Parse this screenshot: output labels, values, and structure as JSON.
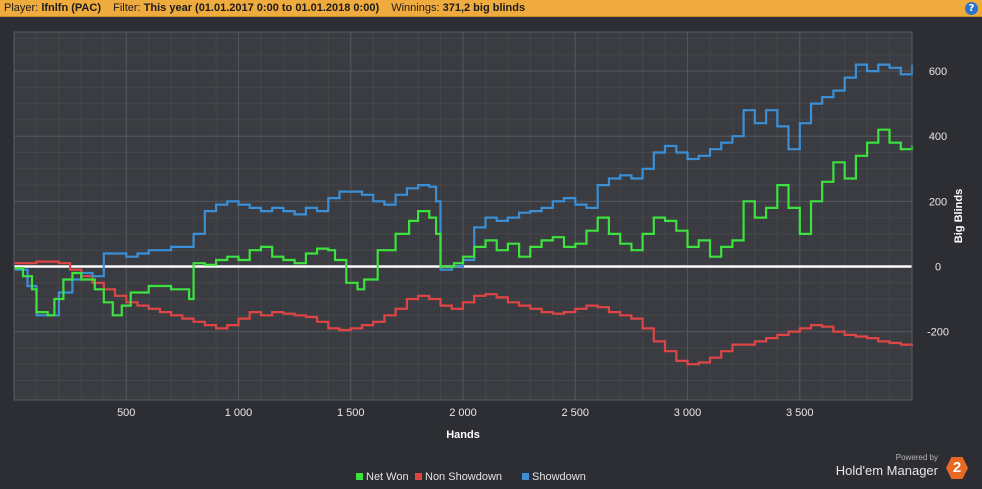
{
  "header": {
    "player_label": "Player:",
    "player_value": "lfnlfn (PAC)",
    "filter_label": "Filter:",
    "filter_value": "This year (01.01.2017 0:00 to 01.01.2018 0:00)",
    "winnings_label": "Winnings:",
    "winnings_value": "371,2 big blinds",
    "help_symbol": "?"
  },
  "branding": {
    "powered_by": "Powered by",
    "product": "Hold'em Manager",
    "logo_number": "2"
  },
  "chart_data": {
    "type": "line",
    "xlabel": "Hands",
    "ylabel": "Big Blinds",
    "xlim": [
      0,
      4000
    ],
    "ylim": [
      -410,
      720
    ],
    "x_ticks": [
      500,
      1000,
      1500,
      2000,
      2500,
      3000,
      3500
    ],
    "x_tick_labels": [
      "500",
      "1 000",
      "1 500",
      "2 000",
      "2 500",
      "3 000",
      "3 500"
    ],
    "y_ticks": [
      -200,
      0,
      200,
      400,
      600
    ],
    "y_tick_labels": [
      "-200",
      "0",
      "200",
      "400",
      "600"
    ],
    "grid": true,
    "legend_position": "bottom-center",
    "zero_line": true,
    "series": [
      {
        "name": "Net Won",
        "color": "#3ee23e",
        "points": [
          [
            0,
            -5
          ],
          [
            40,
            -30
          ],
          [
            80,
            -70
          ],
          [
            100,
            -140
          ],
          [
            150,
            -150
          ],
          [
            180,
            -100
          ],
          [
            220,
            -40
          ],
          [
            260,
            -20
          ],
          [
            300,
            -40
          ],
          [
            360,
            -70
          ],
          [
            400,
            -110
          ],
          [
            440,
            -150
          ],
          [
            480,
            -120
          ],
          [
            520,
            -80
          ],
          [
            600,
            -60
          ],
          [
            700,
            -70
          ],
          [
            780,
            -100
          ],
          [
            800,
            10
          ],
          [
            850,
            5
          ],
          [
            900,
            20
          ],
          [
            950,
            30
          ],
          [
            1000,
            20
          ],
          [
            1050,
            50
          ],
          [
            1100,
            60
          ],
          [
            1150,
            30
          ],
          [
            1200,
            20
          ],
          [
            1250,
            10
          ],
          [
            1300,
            40
          ],
          [
            1350,
            55
          ],
          [
            1400,
            50
          ],
          [
            1430,
            20
          ],
          [
            1480,
            -50
          ],
          [
            1530,
            -70
          ],
          [
            1560,
            -40
          ],
          [
            1620,
            50
          ],
          [
            1700,
            100
          ],
          [
            1760,
            140
          ],
          [
            1800,
            170
          ],
          [
            1850,
            150
          ],
          [
            1880,
            100
          ],
          [
            1900,
            0
          ],
          [
            1960,
            10
          ],
          [
            2000,
            30
          ],
          [
            2050,
            60
          ],
          [
            2100,
            80
          ],
          [
            2150,
            50
          ],
          [
            2200,
            70
          ],
          [
            2250,
            30
          ],
          [
            2300,
            60
          ],
          [
            2350,
            80
          ],
          [
            2400,
            90
          ],
          [
            2450,
            60
          ],
          [
            2500,
            70
          ],
          [
            2550,
            110
          ],
          [
            2600,
            150
          ],
          [
            2650,
            100
          ],
          [
            2700,
            70
          ],
          [
            2750,
            50
          ],
          [
            2800,
            100
          ],
          [
            2850,
            150
          ],
          [
            2900,
            140
          ],
          [
            2950,
            110
          ],
          [
            3000,
            60
          ],
          [
            3050,
            80
          ],
          [
            3100,
            30
          ],
          [
            3150,
            60
          ],
          [
            3200,
            80
          ],
          [
            3250,
            200
          ],
          [
            3300,
            150
          ],
          [
            3350,
            180
          ],
          [
            3400,
            250
          ],
          [
            3450,
            180
          ],
          [
            3500,
            100
          ],
          [
            3550,
            200
          ],
          [
            3600,
            260
          ],
          [
            3650,
            320
          ],
          [
            3700,
            270
          ],
          [
            3750,
            340
          ],
          [
            3800,
            380
          ],
          [
            3850,
            420
          ],
          [
            3900,
            380
          ],
          [
            3950,
            360
          ],
          [
            4000,
            371.2
          ]
        ]
      },
      {
        "name": "Non Showdown",
        "color": "#e04545",
        "points": [
          [
            0,
            10
          ],
          [
            100,
            15
          ],
          [
            200,
            10
          ],
          [
            250,
            -10
          ],
          [
            300,
            -30
          ],
          [
            350,
            -50
          ],
          [
            400,
            -70
          ],
          [
            450,
            -90
          ],
          [
            500,
            -110
          ],
          [
            550,
            -120
          ],
          [
            600,
            -130
          ],
          [
            650,
            -140
          ],
          [
            700,
            -150
          ],
          [
            750,
            -160
          ],
          [
            800,
            -170
          ],
          [
            850,
            -180
          ],
          [
            900,
            -190
          ],
          [
            950,
            -180
          ],
          [
            1000,
            -160
          ],
          [
            1050,
            -140
          ],
          [
            1100,
            -150
          ],
          [
            1150,
            -140
          ],
          [
            1200,
            -145
          ],
          [
            1250,
            -150
          ],
          [
            1300,
            -155
          ],
          [
            1350,
            -170
          ],
          [
            1400,
            -190
          ],
          [
            1450,
            -195
          ],
          [
            1500,
            -190
          ],
          [
            1550,
            -180
          ],
          [
            1600,
            -170
          ],
          [
            1650,
            -150
          ],
          [
            1700,
            -130
          ],
          [
            1750,
            -100
          ],
          [
            1800,
            -90
          ],
          [
            1850,
            -100
          ],
          [
            1900,
            -120
          ],
          [
            1950,
            -130
          ],
          [
            2000,
            -110
          ],
          [
            2050,
            -90
          ],
          [
            2100,
            -85
          ],
          [
            2150,
            -95
          ],
          [
            2200,
            -110
          ],
          [
            2250,
            -120
          ],
          [
            2300,
            -130
          ],
          [
            2350,
            -140
          ],
          [
            2400,
            -145
          ],
          [
            2450,
            -140
          ],
          [
            2500,
            -130
          ],
          [
            2550,
            -120
          ],
          [
            2600,
            -125
          ],
          [
            2650,
            -140
          ],
          [
            2700,
            -150
          ],
          [
            2750,
            -160
          ],
          [
            2800,
            -190
          ],
          [
            2850,
            -230
          ],
          [
            2900,
            -260
          ],
          [
            2950,
            -290
          ],
          [
            3000,
            -300
          ],
          [
            3050,
            -295
          ],
          [
            3100,
            -280
          ],
          [
            3150,
            -260
          ],
          [
            3200,
            -240
          ],
          [
            3250,
            -240
          ],
          [
            3300,
            -230
          ],
          [
            3350,
            -220
          ],
          [
            3400,
            -210
          ],
          [
            3450,
            -200
          ],
          [
            3500,
            -190
          ],
          [
            3550,
            -180
          ],
          [
            3600,
            -185
          ],
          [
            3650,
            -200
          ],
          [
            3700,
            -210
          ],
          [
            3750,
            -215
          ],
          [
            3800,
            -220
          ],
          [
            3850,
            -230
          ],
          [
            3900,
            -235
          ],
          [
            3950,
            -240
          ],
          [
            4000,
            -245
          ]
        ]
      },
      {
        "name": "Showdown",
        "color": "#3a8fd6",
        "points": [
          [
            0,
            -10
          ],
          [
            60,
            -60
          ],
          [
            100,
            -150
          ],
          [
            150,
            -150
          ],
          [
            200,
            -80
          ],
          [
            260,
            -40
          ],
          [
            300,
            -20
          ],
          [
            350,
            -30
          ],
          [
            400,
            40
          ],
          [
            450,
            40
          ],
          [
            500,
            30
          ],
          [
            550,
            40
          ],
          [
            600,
            50
          ],
          [
            700,
            60
          ],
          [
            800,
            100
          ],
          [
            850,
            170
          ],
          [
            900,
            190
          ],
          [
            950,
            200
          ],
          [
            1000,
            190
          ],
          [
            1050,
            180
          ],
          [
            1100,
            170
          ],
          [
            1150,
            180
          ],
          [
            1200,
            170
          ],
          [
            1250,
            160
          ],
          [
            1300,
            180
          ],
          [
            1350,
            170
          ],
          [
            1400,
            210
          ],
          [
            1450,
            230
          ],
          [
            1500,
            230
          ],
          [
            1550,
            220
          ],
          [
            1600,
            200
          ],
          [
            1650,
            190
          ],
          [
            1700,
            220
          ],
          [
            1750,
            240
          ],
          [
            1800,
            250
          ],
          [
            1850,
            245
          ],
          [
            1880,
            200
          ],
          [
            1900,
            -10
          ],
          [
            1950,
            0
          ],
          [
            2000,
            20
          ],
          [
            2050,
            120
          ],
          [
            2100,
            150
          ],
          [
            2150,
            140
          ],
          [
            2200,
            150
          ],
          [
            2250,
            165
          ],
          [
            2300,
            170
          ],
          [
            2350,
            180
          ],
          [
            2400,
            200
          ],
          [
            2450,
            210
          ],
          [
            2500,
            190
          ],
          [
            2550,
            180
          ],
          [
            2600,
            250
          ],
          [
            2650,
            270
          ],
          [
            2700,
            280
          ],
          [
            2750,
            270
          ],
          [
            2800,
            300
          ],
          [
            2850,
            350
          ],
          [
            2900,
            370
          ],
          [
            2950,
            350
          ],
          [
            3000,
            330
          ],
          [
            3050,
            340
          ],
          [
            3100,
            360
          ],
          [
            3150,
            380
          ],
          [
            3200,
            400
          ],
          [
            3250,
            480
          ],
          [
            3300,
            440
          ],
          [
            3350,
            480
          ],
          [
            3400,
            430
          ],
          [
            3450,
            360
          ],
          [
            3500,
            440
          ],
          [
            3550,
            500
          ],
          [
            3600,
            520
          ],
          [
            3650,
            540
          ],
          [
            3700,
            580
          ],
          [
            3750,
            620
          ],
          [
            3800,
            600
          ],
          [
            3850,
            620
          ],
          [
            3900,
            610
          ],
          [
            3950,
            590
          ],
          [
            4000,
            620
          ]
        ]
      }
    ]
  }
}
